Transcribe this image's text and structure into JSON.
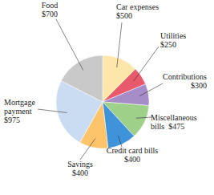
{
  "chart_data": {
    "type": "pie",
    "categories": [
      "Car expenses",
      "Utilities",
      "Contributions",
      "Miscellaneous bills",
      "Credit card bills",
      "Savings",
      "Mortgage payment",
      "Food"
    ],
    "values": [
      500,
      250,
      300,
      475,
      400,
      400,
      975,
      700
    ],
    "value_labels": [
      "$500",
      "$250",
      "$300",
      "$475",
      "$400",
      "$400",
      "$975",
      "$700"
    ],
    "colors": [
      "#fce6a9",
      "#e9596c",
      "#a68dc8",
      "#9fd089",
      "#3f94d9",
      "#fdc46c",
      "#cadcf2",
      "#c9c9c9"
    ],
    "data_labels": true
  }
}
